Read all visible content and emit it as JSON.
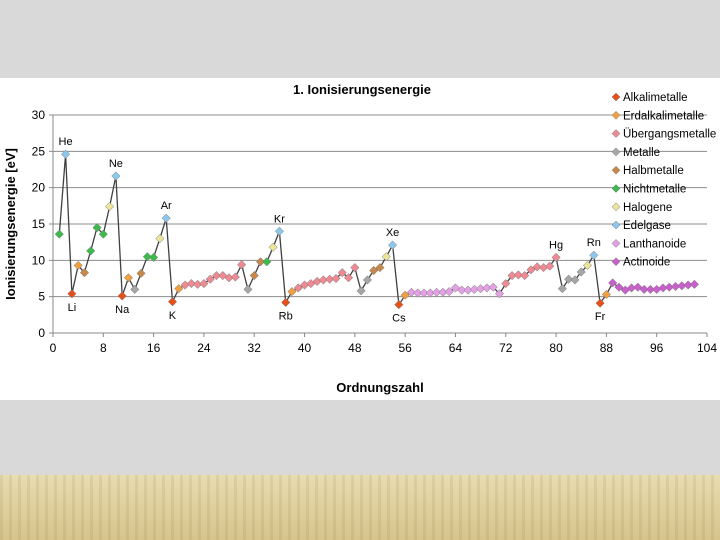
{
  "chart_data": {
    "type": "line",
    "title": "1. Ionisierungsenergie",
    "xlabel": "Ordnungszahl",
    "ylabel": "Ionisierungsenergie [eV]",
    "xlim": [
      0,
      104
    ],
    "ylim": [
      0,
      30
    ],
    "x_ticks": [
      "0",
      "8",
      "16",
      "24",
      "32",
      "40",
      "48",
      "56",
      "64",
      "72",
      "80",
      "88",
      "96",
      "104"
    ],
    "y_ticks": [
      "0",
      "5",
      "10",
      "15",
      "20",
      "25",
      "30"
    ],
    "grid": "horizontal",
    "legend_position": "right",
    "legend": [
      {
        "label": "Alkalimetalle",
        "color": "#e8501a"
      },
      {
        "label": "Erdalkalimetalle",
        "color": "#f0a040"
      },
      {
        "label": "Übergangsmetalle",
        "color": "#ee8a92"
      },
      {
        "label": "Metalle",
        "color": "#a6a6a6"
      },
      {
        "label": "Halbmetalle",
        "color": "#c8884a"
      },
      {
        "label": "Nichtmetalle",
        "color": "#3cba4c"
      },
      {
        "label": "Halogene",
        "color": "#ece49a"
      },
      {
        "label": "Edelgase",
        "color": "#8cc8ec"
      },
      {
        "label": "Lanthanoide",
        "color": "#e4a0e4"
      },
      {
        "label": "Actinoide",
        "color": "#c860cc"
      }
    ],
    "element_labels": [
      {
        "z": 2,
        "text": "He",
        "pos": "above"
      },
      {
        "z": 3,
        "text": "Li",
        "pos": "below"
      },
      {
        "z": 10,
        "text": "Ne",
        "pos": "above"
      },
      {
        "z": 11,
        "text": "Na",
        "pos": "below"
      },
      {
        "z": 18,
        "text": "Ar",
        "pos": "above"
      },
      {
        "z": 19,
        "text": "K",
        "pos": "below"
      },
      {
        "z": 36,
        "text": "Kr",
        "pos": "above"
      },
      {
        "z": 37,
        "text": "Rb",
        "pos": "below"
      },
      {
        "z": 54,
        "text": "Xe",
        "pos": "above"
      },
      {
        "z": 55,
        "text": "Cs",
        "pos": "below"
      },
      {
        "z": 80,
        "text": "Hg",
        "pos": "above"
      },
      {
        "z": 86,
        "text": "Rn",
        "pos": "above"
      },
      {
        "z": 87,
        "text": "Fr",
        "pos": "below"
      }
    ],
    "points": [
      [
        1,
        13.6,
        5
      ],
      [
        2,
        24.6,
        7
      ],
      [
        3,
        5.4,
        0
      ],
      [
        4,
        9.3,
        1
      ],
      [
        5,
        8.3,
        4
      ],
      [
        6,
        11.3,
        5
      ],
      [
        7,
        14.5,
        5
      ],
      [
        8,
        13.6,
        5
      ],
      [
        9,
        17.4,
        6
      ],
      [
        10,
        21.6,
        7
      ],
      [
        11,
        5.1,
        0
      ],
      [
        12,
        7.6,
        1
      ],
      [
        13,
        6.0,
        3
      ],
      [
        14,
        8.2,
        4
      ],
      [
        15,
        10.5,
        5
      ],
      [
        16,
        10.4,
        5
      ],
      [
        17,
        13.0,
        6
      ],
      [
        18,
        15.8,
        7
      ],
      [
        19,
        4.3,
        0
      ],
      [
        20,
        6.1,
        1
      ],
      [
        21,
        6.6,
        2
      ],
      [
        22,
        6.8,
        2
      ],
      [
        23,
        6.7,
        2
      ],
      [
        24,
        6.8,
        2
      ],
      [
        25,
        7.4,
        2
      ],
      [
        26,
        7.9,
        2
      ],
      [
        27,
        7.9,
        2
      ],
      [
        28,
        7.6,
        2
      ],
      [
        29,
        7.7,
        2
      ],
      [
        30,
        9.4,
        2
      ],
      [
        31,
        6.0,
        3
      ],
      [
        32,
        7.9,
        4
      ],
      [
        33,
        9.8,
        4
      ],
      [
        34,
        9.8,
        5
      ],
      [
        35,
        11.8,
        6
      ],
      [
        36,
        14.0,
        7
      ],
      [
        37,
        4.2,
        0
      ],
      [
        38,
        5.7,
        1
      ],
      [
        39,
        6.2,
        2
      ],
      [
        40,
        6.6,
        2
      ],
      [
        41,
        6.8,
        2
      ],
      [
        42,
        7.1,
        2
      ],
      [
        43,
        7.3,
        2
      ],
      [
        44,
        7.4,
        2
      ],
      [
        45,
        7.5,
        2
      ],
      [
        46,
        8.3,
        2
      ],
      [
        47,
        7.6,
        2
      ],
      [
        48,
        9.0,
        2
      ],
      [
        49,
        5.8,
        3
      ],
      [
        50,
        7.3,
        3
      ],
      [
        51,
        8.6,
        4
      ],
      [
        52,
        9.0,
        4
      ],
      [
        53,
        10.5,
        6
      ],
      [
        54,
        12.1,
        7
      ],
      [
        55,
        3.9,
        0
      ],
      [
        56,
        5.2,
        1
      ],
      [
        57,
        5.6,
        8
      ],
      [
        58,
        5.5,
        8
      ],
      [
        59,
        5.5,
        8
      ],
      [
        60,
        5.5,
        8
      ],
      [
        61,
        5.6,
        8
      ],
      [
        62,
        5.6,
        8
      ],
      [
        63,
        5.7,
        8
      ],
      [
        64,
        6.2,
        8
      ],
      [
        65,
        5.9,
        8
      ],
      [
        66,
        5.9,
        8
      ],
      [
        67,
        6.0,
        8
      ],
      [
        68,
        6.1,
        8
      ],
      [
        69,
        6.2,
        8
      ],
      [
        70,
        6.3,
        8
      ],
      [
        71,
        5.4,
        8
      ],
      [
        72,
        6.8,
        2
      ],
      [
        73,
        7.9,
        2
      ],
      [
        74,
        8.0,
        2
      ],
      [
        75,
        7.9,
        2
      ],
      [
        76,
        8.7,
        2
      ],
      [
        77,
        9.1,
        2
      ],
      [
        78,
        9.0,
        2
      ],
      [
        79,
        9.2,
        2
      ],
      [
        80,
        10.4,
        2
      ],
      [
        81,
        6.1,
        3
      ],
      [
        82,
        7.4,
        3
      ],
      [
        83,
        7.3,
        3
      ],
      [
        84,
        8.4,
        3
      ],
      [
        85,
        9.3,
        6
      ],
      [
        86,
        10.7,
        7
      ],
      [
        87,
        4.1,
        0
      ],
      [
        88,
        5.3,
        1
      ],
      [
        89,
        6.9,
        9
      ],
      [
        90,
        6.3,
        9
      ],
      [
        91,
        5.9,
        9
      ],
      [
        92,
        6.2,
        9
      ],
      [
        93,
        6.3,
        9
      ],
      [
        94,
        6.0,
        9
      ],
      [
        95,
        6.0,
        9
      ],
      [
        96,
        6.0,
        9
      ],
      [
        97,
        6.2,
        9
      ],
      [
        98,
        6.3,
        9
      ],
      [
        99,
        6.4,
        9
      ],
      [
        100,
        6.5,
        9
      ],
      [
        101,
        6.6,
        9
      ],
      [
        102,
        6.7,
        9
      ]
    ]
  }
}
